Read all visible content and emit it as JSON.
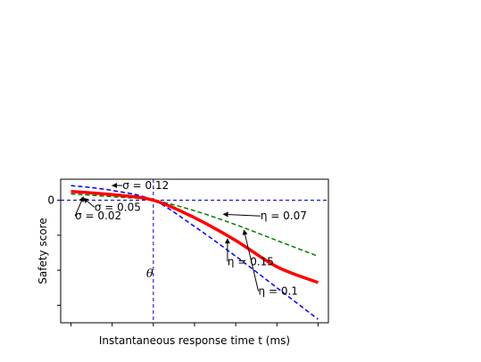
{
  "chart_data": {
    "type": "line",
    "title": "",
    "xlabel": "Instantaneous response time t (ms)",
    "ylabel": "Safety score",
    "x": [
      0,
      1,
      2,
      3,
      4,
      5,
      6
    ],
    "xlim": [
      -0.25,
      6.25
    ],
    "ylim": [
      -3.5,
      0.6
    ],
    "y_tick_values": [
      0,
      -1,
      -2,
      -3
    ],
    "y_tick_labels": [
      "0",
      "",
      "",
      ""
    ],
    "x_tick_labels": [
      "",
      "",
      "",
      "",
      "",
      "",
      ""
    ],
    "grid": false,
    "threshold_x": 2,
    "threshold_label": "θ",
    "series": [
      {
        "name": "σ = 0.12",
        "color": "#0000ff",
        "dash": true,
        "width": 1.5,
        "values": [
          0.42,
          0.28,
          0.0,
          -0.75,
          -1.6,
          -2.5,
          -3.4
        ]
      },
      {
        "name": "σ = 0.05",
        "color": "#008000",
        "dash": true,
        "width": 1.5,
        "values": [
          0.18,
          0.1,
          0.0,
          -0.3,
          -0.7,
          -1.15,
          -1.6
        ]
      },
      {
        "name": "σ = 0.02",
        "color": "#ff0000",
        "dash": false,
        "width": 3.5,
        "values": [
          0.25,
          0.16,
          0.0,
          -0.5,
          -1.15,
          -1.9,
          -2.35
        ]
      }
    ],
    "annotations": [
      {
        "text": "σ = 0.12",
        "x": 1.0,
        "y": 0.42,
        "tx": 1.25,
        "ty": 0.42
      },
      {
        "text": "σ = 0.05",
        "x": 0.3,
        "y": 0.06,
        "tx": 0.57,
        "ty": -0.2
      },
      {
        "text": "σ = 0.02",
        "x": 0.3,
        "y": 0.1,
        "tx": 0.1,
        "ty": -0.45
      },
      {
        "text": "η = 0.07",
        "x": 3.7,
        "y": -0.4,
        "tx": 4.6,
        "ty": -0.45
      },
      {
        "text": "η = 0.15",
        "x": 3.8,
        "y": -1.1,
        "tx": 3.8,
        "ty": -1.75
      },
      {
        "text": "η = 0.1",
        "x": 4.2,
        "y": -0.85,
        "tx": 4.55,
        "ty": -2.6
      }
    ]
  }
}
